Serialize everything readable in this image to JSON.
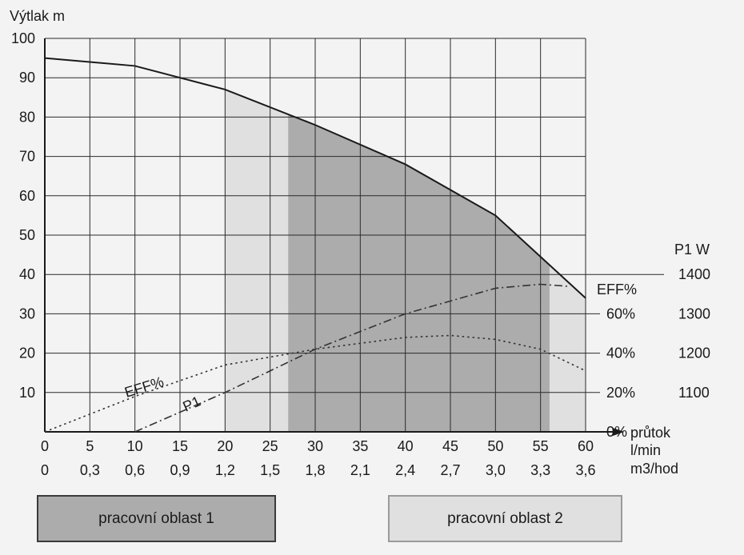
{
  "chart_data": {
    "type": "line",
    "y_axis": {
      "label": "Výtlak m",
      "min": 0,
      "max": 100,
      "ticks": [
        "10",
        "20",
        "30",
        "40",
        "50",
        "60",
        "70",
        "80",
        "90",
        "100"
      ],
      "tick_values": [
        10,
        20,
        30,
        40,
        50,
        60,
        70,
        80,
        90,
        100
      ]
    },
    "x_axis": {
      "label_lines": [
        "průtok",
        "l/min",
        "m3/hod"
      ],
      "min": 0,
      "max": 60,
      "ticks_lmin": [
        "0",
        "5",
        "10",
        "15",
        "20",
        "25",
        "30",
        "35",
        "40",
        "45",
        "50",
        "55",
        "60"
      ],
      "ticks_m3h": [
        "0",
        "0,3",
        "0,6",
        "0,9",
        "1,2",
        "1,5",
        "1,8",
        "2,1",
        "2,4",
        "2,7",
        "3,0",
        "3,3",
        "3,6"
      ],
      "tick_values": [
        0,
        5,
        10,
        15,
        20,
        25,
        30,
        35,
        40,
        45,
        50,
        55,
        60
      ]
    },
    "eff_axis": {
      "title": "EFF%",
      "ticks": [
        "0%",
        "20%",
        "40%",
        "60%"
      ],
      "tick_values_on_y": [
        0,
        10,
        20,
        30
      ]
    },
    "power_axis": {
      "title": "P1 W",
      "ticks": [
        "1100",
        "1200",
        "1300",
        "1400"
      ],
      "tick_values_on_y": [
        10,
        20,
        30,
        40
      ]
    },
    "series": [
      {
        "name": "Výtlak m",
        "style": "solid",
        "x": [
          0,
          10,
          20,
          30,
          40,
          50,
          60
        ],
        "y": [
          95,
          93,
          87,
          78,
          68,
          55,
          34
        ]
      },
      {
        "name": "EFF%",
        "style": "dotted",
        "label": "EFF%",
        "x": [
          0,
          10,
          20,
          30,
          40,
          45,
          50,
          55,
          60
        ],
        "y": [
          0,
          9,
          17,
          21,
          24,
          24.5,
          23.5,
          21,
          15.5
        ]
      },
      {
        "name": "P1",
        "style": "dash-dot",
        "label": "P1",
        "x": [
          10,
          20,
          30,
          40,
          50,
          55,
          58
        ],
        "y": [
          0,
          10,
          21,
          30,
          36.5,
          37.5,
          37
        ]
      }
    ],
    "regions": [
      {
        "name": "pracovní oblast 1",
        "x_range": [
          27,
          56
        ],
        "color": "#acacac"
      },
      {
        "name": "pracovní oblast 2",
        "x_ranges": [
          [
            20,
            27
          ],
          [
            56,
            60
          ]
        ],
        "color": "#e0e0e0"
      }
    ],
    "grid": true
  },
  "legend": {
    "area1": "pracovní oblast 1",
    "area2": "pracovní oblast 2"
  }
}
